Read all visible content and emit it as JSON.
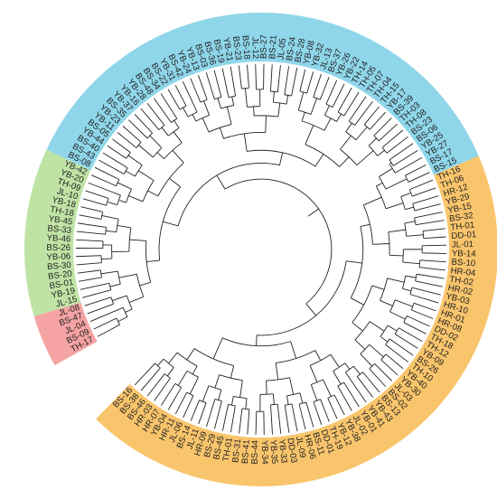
{
  "colors": {
    "red": "#f5a3a3",
    "green": "#bfe3a5",
    "blue": "#8fd6ea",
    "orange": "#f9c56c"
  },
  "tree": {
    "leaves": [
      {
        "label": "TH-17",
        "clade": "red"
      },
      {
        "label": "BS-09",
        "clade": "red"
      },
      {
        "label": "JL-04",
        "clade": "red"
      },
      {
        "label": "BS-47",
        "clade": "red"
      },
      {
        "label": "JL-08",
        "clade": "red"
      },
      {
        "label": "JL-15",
        "clade": "green"
      },
      {
        "label": "YB-19",
        "clade": "green"
      },
      {
        "label": "BS-01",
        "clade": "green"
      },
      {
        "label": "BS-20",
        "clade": "green"
      },
      {
        "label": "BS-30",
        "clade": "green"
      },
      {
        "label": "YB-06",
        "clade": "green"
      },
      {
        "label": "BS-26",
        "clade": "green"
      },
      {
        "label": "YB-46",
        "clade": "green"
      },
      {
        "label": "BS-33",
        "clade": "green"
      },
      {
        "label": "YB-45",
        "clade": "green"
      },
      {
        "label": "TH-18",
        "clade": "green"
      },
      {
        "label": "YB-18",
        "clade": "green"
      },
      {
        "label": "JL-10",
        "clade": "green"
      },
      {
        "label": "TH-09",
        "clade": "green"
      },
      {
        "label": "YB-20",
        "clade": "green"
      },
      {
        "label": "YB-42",
        "clade": "green"
      },
      {
        "label": "BS-08",
        "clade": "blue"
      },
      {
        "label": "BS-43",
        "clade": "blue"
      },
      {
        "label": "BS-40",
        "clade": "blue"
      },
      {
        "label": "YB-44",
        "clade": "blue"
      },
      {
        "label": "BS-05",
        "clade": "blue"
      },
      {
        "label": "YB-11",
        "clade": "blue"
      },
      {
        "label": "YB-23",
        "clade": "blue"
      },
      {
        "label": "BS-35",
        "clade": "blue"
      },
      {
        "label": "YB-37",
        "clade": "blue"
      },
      {
        "label": "YB-16",
        "clade": "blue"
      },
      {
        "label": "YB-28",
        "clade": "blue"
      },
      {
        "label": "BS-48",
        "clade": "blue"
      },
      {
        "label": "BS-34",
        "clade": "blue"
      },
      {
        "label": "BS-22",
        "clade": "blue"
      },
      {
        "label": "YB-31",
        "clade": "blue"
      },
      {
        "label": "BS-42",
        "clade": "blue"
      },
      {
        "label": "YB-24",
        "clade": "blue"
      },
      {
        "label": "YB-13",
        "clade": "blue"
      },
      {
        "label": "BS-03",
        "clade": "blue"
      },
      {
        "label": "BS-36",
        "clade": "blue"
      },
      {
        "label": "BS-19",
        "clade": "blue"
      },
      {
        "label": "YB-21",
        "clade": "blue"
      },
      {
        "label": "BS-23",
        "clade": "blue"
      },
      {
        "label": "BS-18",
        "clade": "blue"
      },
      {
        "label": "JL-12",
        "clade": "blue"
      },
      {
        "label": "BS-27",
        "clade": "blue"
      },
      {
        "label": "BS-21",
        "clade": "blue"
      },
      {
        "label": "JL-05",
        "clade": "blue"
      },
      {
        "label": "BS-24",
        "clade": "blue"
      },
      {
        "label": "BS-28",
        "clade": "blue"
      },
      {
        "label": "YB-08",
        "clade": "blue"
      },
      {
        "label": "YB-32",
        "clade": "blue"
      },
      {
        "label": "JL-13",
        "clade": "blue"
      },
      {
        "label": "BS-37",
        "clade": "blue"
      },
      {
        "label": "YB-26",
        "clade": "blue"
      },
      {
        "label": "YB-22",
        "clade": "blue"
      },
      {
        "label": "TH-14",
        "clade": "blue"
      },
      {
        "label": "TH-05",
        "clade": "blue"
      },
      {
        "label": "TH-07",
        "clade": "blue"
      },
      {
        "label": "TH-04",
        "clade": "blue"
      },
      {
        "label": "TH-15",
        "clade": "blue"
      },
      {
        "label": "YB-17",
        "clade": "blue"
      },
      {
        "label": "BS-39",
        "clade": "blue"
      },
      {
        "label": "TH-03",
        "clade": "blue"
      },
      {
        "label": "TH-08",
        "clade": "blue"
      },
      {
        "label": "BS-23",
        "clade": "blue"
      },
      {
        "label": "BS-06",
        "clade": "blue"
      },
      {
        "label": "YB-25",
        "clade": "blue"
      },
      {
        "label": "YB-27",
        "clade": "blue"
      },
      {
        "label": "BS-17",
        "clade": "blue"
      },
      {
        "label": "BS-15",
        "clade": "blue"
      },
      {
        "label": "TH-16",
        "clade": "orange"
      },
      {
        "label": "TH-06",
        "clade": "orange"
      },
      {
        "label": "HR-12",
        "clade": "orange"
      },
      {
        "label": "YB-29",
        "clade": "orange"
      },
      {
        "label": "YB-15",
        "clade": "orange"
      },
      {
        "label": "BS-32",
        "clade": "orange"
      },
      {
        "label": "TH-01",
        "clade": "orange"
      },
      {
        "label": "DD-01",
        "clade": "orange"
      },
      {
        "label": "JL-01",
        "clade": "orange"
      },
      {
        "label": "YB-14",
        "clade": "orange"
      },
      {
        "label": "BS-10",
        "clade": "orange"
      },
      {
        "label": "HR-04",
        "clade": "orange"
      },
      {
        "label": "TH-02",
        "clade": "orange"
      },
      {
        "label": "HR-02",
        "clade": "orange"
      },
      {
        "label": "YB-03",
        "clade": "orange"
      },
      {
        "label": "HR-10",
        "clade": "orange"
      },
      {
        "label": "HR-01",
        "clade": "orange"
      },
      {
        "label": "HR-08",
        "clade": "orange"
      },
      {
        "label": "DD-02",
        "clade": "orange"
      },
      {
        "label": "TH-18",
        "clade": "orange"
      },
      {
        "label": "TH-12",
        "clade": "orange"
      },
      {
        "label": "YB-09",
        "clade": "orange"
      },
      {
        "label": "BS-26",
        "clade": "orange"
      },
      {
        "label": "TH-10",
        "clade": "orange"
      },
      {
        "label": "YB-40",
        "clade": "orange"
      },
      {
        "label": "YB-30",
        "clade": "orange"
      },
      {
        "label": "JL-03",
        "clade": "orange"
      },
      {
        "label": "BS-02",
        "clade": "orange"
      },
      {
        "label": "BS-13",
        "clade": "orange"
      },
      {
        "label": "YB-43",
        "clade": "orange"
      },
      {
        "label": "YB-41",
        "clade": "orange"
      },
      {
        "label": "YB-01",
        "clade": "orange"
      },
      {
        "label": "JL-02",
        "clade": "orange"
      },
      {
        "label": "YB-38",
        "clade": "orange"
      },
      {
        "label": "YB-12",
        "clade": "orange"
      },
      {
        "label": "TH-19",
        "clade": "orange"
      },
      {
        "label": "DD-01",
        "clade": "orange"
      },
      {
        "label": "BS-11",
        "clade": "orange"
      },
      {
        "label": "HR-06",
        "clade": "orange"
      },
      {
        "label": "JL-09",
        "clade": "orange"
      },
      {
        "label": "DD-03",
        "clade": "orange"
      },
      {
        "label": "YB-33",
        "clade": "orange"
      },
      {
        "label": "YB-35",
        "clade": "orange"
      },
      {
        "label": "YB-34",
        "clade": "orange"
      },
      {
        "label": "BS-44",
        "clade": "orange"
      },
      {
        "label": "BS-41",
        "clade": "orange"
      },
      {
        "label": "BS-31",
        "clade": "orange"
      },
      {
        "label": "TH-01",
        "clade": "orange"
      },
      {
        "label": "BS-45",
        "clade": "orange"
      },
      {
        "label": "BS-29",
        "clade": "orange"
      },
      {
        "label": "HR-09",
        "clade": "orange"
      },
      {
        "label": "JL-11",
        "clade": "orange"
      },
      {
        "label": "BS-14",
        "clade": "orange"
      },
      {
        "label": "JL-06",
        "clade": "orange"
      },
      {
        "label": "HR-11",
        "clade": "orange"
      },
      {
        "label": "YB-04",
        "clade": "orange"
      },
      {
        "label": "HR-07",
        "clade": "orange"
      },
      {
        "label": "HR-03",
        "clade": "orange"
      },
      {
        "label": "BS-46",
        "clade": "orange"
      },
      {
        "label": "BS-38",
        "clade": "orange"
      },
      {
        "label": "BS-16",
        "clade": "orange"
      }
    ]
  }
}
